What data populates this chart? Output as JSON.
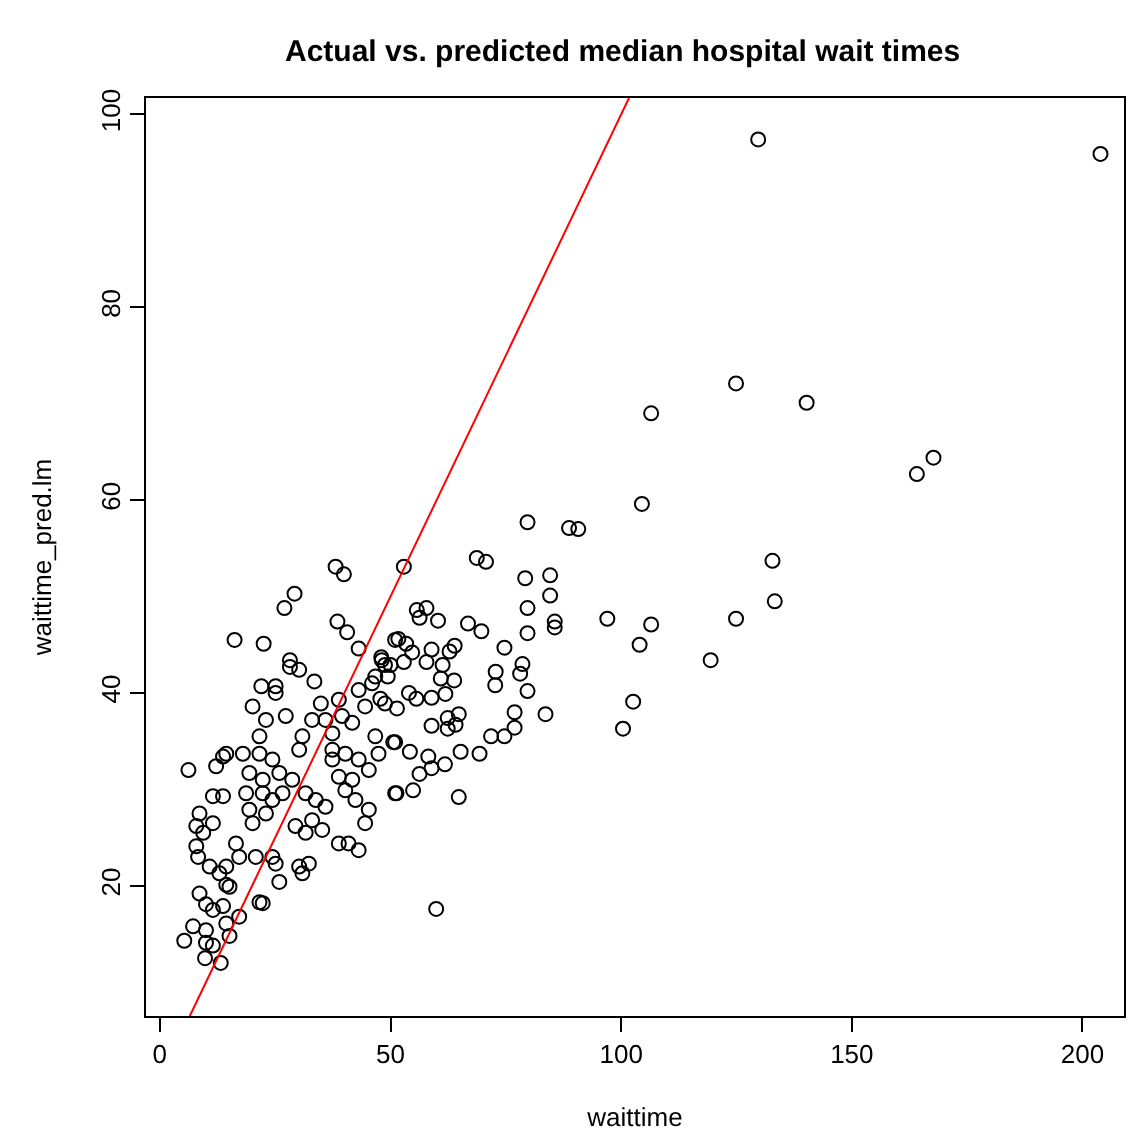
{
  "chart_data": {
    "type": "scatter",
    "title": "Actual vs. predicted median hospital wait times",
    "xlabel": "waittime",
    "ylabel": "waittime_pred.lm",
    "xlim": [
      -3,
      209
    ],
    "ylim": [
      6.5,
      101.7
    ],
    "xticks": [
      0,
      50,
      100,
      150,
      200
    ],
    "yticks": [
      20,
      40,
      60,
      80,
      100
    ],
    "marker": "circle",
    "series": [
      {
        "color": "#000000",
        "x": [
          129.7,
          203.9,
          124.9,
          106.5,
          140.2,
          104.5,
          167.7,
          164.1,
          132.8,
          133.3,
          124.9,
          97.0,
          106.5,
          104.0,
          119.4,
          102.6,
          100.4,
          79.7,
          88.7,
          90.7,
          52.9,
          68.7,
          70.7,
          79.2,
          84.6,
          84.6,
          79.7,
          55.7,
          57.8,
          56.3,
          60.3,
          66.8,
          69.7,
          85.6,
          85.6,
          79.7,
          74.7,
          51.7,
          53.4,
          58.9,
          62.8,
          63.9,
          54.7,
          57.8,
          61.3,
          48.0,
          48.8,
          49.4,
          52.9,
          72.8,
          78.6,
          78.1,
          60.9,
          63.8,
          72.7,
          79.7,
          54.0,
          55.6,
          58.9,
          61.9,
          47.8,
          51.4,
          76.9,
          83.6,
          62.4,
          64.8,
          58.9,
          62.4,
          64.1,
          76.9,
          71.8,
          74.7,
          50.6,
          54.2,
          58.2,
          65.2,
          69.3,
          61.8,
          56.3,
          58.9,
          51.3,
          54.9,
          64.8,
          59.9,
          38.1,
          39.9,
          29.2,
          27.0,
          16.2,
          22.5,
          38.5,
          40.6,
          43.1,
          28.2,
          28.2,
          33.5,
          22.0,
          25.1,
          25.1,
          20.1,
          34.9,
          38.8,
          43.1,
          46.0,
          48.1,
          50.0,
          51.0,
          46.7,
          23.0,
          27.3,
          33.0,
          35.9,
          39.5,
          41.7,
          44.5,
          48.8,
          14.4,
          18.0,
          6.2,
          12.2,
          13.7,
          21.6,
          21.6,
          24.4,
          30.2,
          30.9,
          37.4,
          37.4,
          40.2,
          38.8,
          43.1,
          45.3,
          41.7,
          19.4,
          22.3,
          25.9,
          28.7,
          18.7,
          22.3,
          24.4,
          26.6,
          19.4,
          20.1,
          23.0,
          31.6,
          33.8,
          35.9,
          33.0,
          29.4,
          31.6,
          35.2,
          38.8,
          40.9,
          43.1,
          44.5,
          45.3,
          42.4,
          40.2,
          8.6,
          7.9,
          9.4,
          7.9,
          8.3,
          11.5,
          11.5,
          13.7,
          10.8,
          14.4,
          12.9,
          16.5,
          17.2,
          20.8,
          24.4,
          25.1,
          30.2,
          30.9,
          32.3,
          14.4,
          15.1,
          13.7,
          25.9,
          21.6,
          22.3,
          8.6,
          10.0,
          11.5,
          7.2,
          10.0,
          5.3,
          10.0,
          11.5,
          9.8,
          13.2,
          15.1,
          14.4,
          17.2,
          46.7,
          51.0,
          51.0,
          47.4,
          37.4,
          30.2
        ],
        "values": [
          97.4,
          95.9,
          72.1,
          69.0,
          70.1,
          59.6,
          64.4,
          62.7,
          53.7,
          49.5,
          47.7,
          47.7,
          47.1,
          45.0,
          43.4,
          39.1,
          36.3,
          57.7,
          57.1,
          57.0,
          53.1,
          54.0,
          53.6,
          51.9,
          52.2,
          50.1,
          48.8,
          48.6,
          48.8,
          47.8,
          47.5,
          47.2,
          46.4,
          47.4,
          46.8,
          46.2,
          44.7,
          45.6,
          45.1,
          44.5,
          44.3,
          44.9,
          44.2,
          43.2,
          42.9,
          43.7,
          42.9,
          41.7,
          43.2,
          42.2,
          43.0,
          42.0,
          41.5,
          41.3,
          40.8,
          40.2,
          40.0,
          39.4,
          39.5,
          39.9,
          39.4,
          38.4,
          38.0,
          37.8,
          37.4,
          37.8,
          36.6,
          36.3,
          36.7,
          36.4,
          35.5,
          35.5,
          34.9,
          33.9,
          33.4,
          33.9,
          33.7,
          32.6,
          31.6,
          32.2,
          29.6,
          29.9,
          29.2,
          17.6,
          53.1,
          52.3,
          50.3,
          48.8,
          45.5,
          45.1,
          47.4,
          46.3,
          44.6,
          43.4,
          42.7,
          41.2,
          40.7,
          40.7,
          40.0,
          38.6,
          38.9,
          39.3,
          40.3,
          41.0,
          43.4,
          42.9,
          45.5,
          41.7,
          37.2,
          37.6,
          37.2,
          37.2,
          37.6,
          36.9,
          38.6,
          38.9,
          33.7,
          33.7,
          32.0,
          32.4,
          33.4,
          35.5,
          33.7,
          33.1,
          34.1,
          35.5,
          34.1,
          33.1,
          33.7,
          31.3,
          33.1,
          32.0,
          31.0,
          31.7,
          31.0,
          31.7,
          31.0,
          29.6,
          29.6,
          28.9,
          29.6,
          27.9,
          26.5,
          27.5,
          29.6,
          28.9,
          28.2,
          26.8,
          26.2,
          25.5,
          25.8,
          24.4,
          24.4,
          23.7,
          26.5,
          27.9,
          28.9,
          29.9,
          27.5,
          26.2,
          25.5,
          24.1,
          23.0,
          26.5,
          29.3,
          29.3,
          22.0,
          22.0,
          21.3,
          24.4,
          23.0,
          23.0,
          23.0,
          22.3,
          22.0,
          21.3,
          22.3,
          20.1,
          19.9,
          17.9,
          20.4,
          18.3,
          18.2,
          19.2,
          18.1,
          17.5,
          15.8,
          15.4,
          14.3,
          14.1,
          13.8,
          12.5,
          12.0,
          14.8,
          16.1,
          16.8,
          35.5,
          34.9,
          29.6,
          33.7,
          35.8,
          42.4
        ]
      },
      {
        "type": "line",
        "color": "#ff0000",
        "marker": "none",
        "x": [
          6.5,
          101.7
        ],
        "values": [
          6.5,
          101.7
        ]
      }
    ]
  }
}
